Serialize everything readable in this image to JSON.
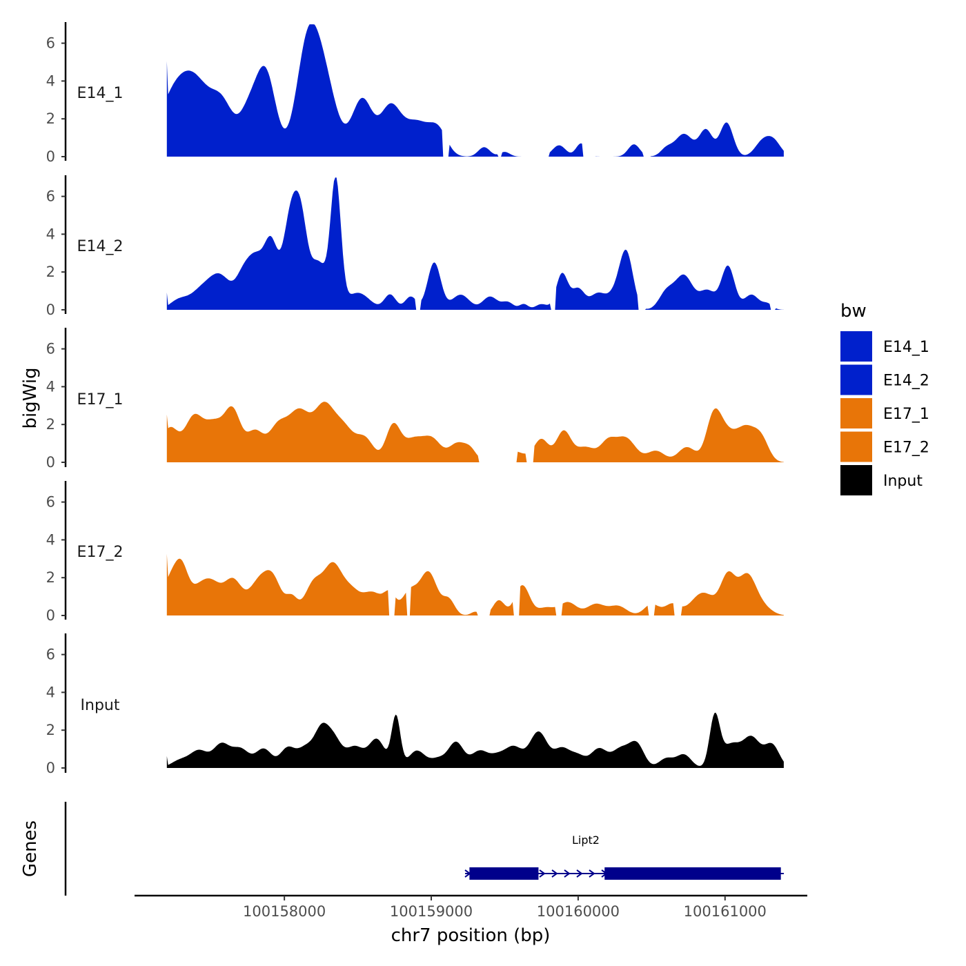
{
  "chart_data": {
    "type": "area",
    "title": "",
    "xlabel": "chr7 position (bp)",
    "ylabel": "bigWig",
    "genes_label": "Genes",
    "x_range": [
      100157200,
      100161400
    ],
    "xlim": [
      100156980,
      100161560
    ],
    "x_ticks": [
      100158000,
      100159000,
      100160000,
      100161000
    ],
    "x_tick_labels": [
      "100158000",
      "100159000",
      "100160000",
      "100161000"
    ],
    "y_range": [
      0,
      7
    ],
    "y_ticks": [
      0,
      2,
      4,
      6
    ],
    "y_tick_labels": [
      "0",
      "2",
      "4",
      "6"
    ],
    "legend": {
      "title": "bw",
      "position": "right",
      "items": [
        {
          "label": "E14_1",
          "color": "#0020cc"
        },
        {
          "label": "E14_2",
          "color": "#0020cc"
        },
        {
          "label": "E17_1",
          "color": "#e87508"
        },
        {
          "label": "E17_2",
          "color": "#e87508"
        },
        {
          "label": "Input",
          "color": "#000000"
        }
      ]
    },
    "series": [
      {
        "name": "E14_1",
        "color": "#0020cc",
        "peaks": [
          [
            100157200,
            0.8,
            1.9
          ],
          [
            100157270,
            120,
            3.6
          ],
          [
            100157420,
            90,
            2.2
          ],
          [
            100157580,
            80,
            2.6
          ],
          [
            100157750,
            60,
            1.8
          ],
          [
            100157870,
            70,
            4.5
          ],
          [
            100158150,
            75,
            4.6
          ],
          [
            100158260,
            90,
            4.2
          ],
          [
            100158530,
            70,
            3.0
          ],
          [
            100158720,
            70,
            2.5
          ],
          [
            100158900,
            90,
            1.8
          ],
          [
            100159050,
            60,
            1.2
          ],
          [
            100159360,
            40,
            0.5
          ],
          [
            100159500,
            35,
            0.25
          ],
          [
            100159870,
            45,
            0.6
          ],
          [
            100160020,
            35,
            0.7
          ],
          [
            100160380,
            40,
            0.65
          ],
          [
            100160600,
            40,
            0.4
          ],
          [
            100160720,
            60,
            1.2
          ],
          [
            100160870,
            45,
            1.4
          ],
          [
            100161010,
            45,
            1.8
          ],
          [
            100161250,
            50,
            0.7
          ],
          [
            100161330,
            50,
            0.8
          ]
        ],
        "gaps": [
          [
            100159080,
            100159120
          ],
          [
            100159450,
            100159480
          ],
          [
            100159700,
            100159800
          ],
          [
            100160030,
            100160120
          ],
          [
            100160440,
            100160490
          ]
        ]
      },
      {
        "name": "E14_2",
        "color": "#0020cc",
        "peaks": [
          [
            100157200,
            0.7,
            0.7
          ],
          [
            100157280,
            60,
            0.5
          ],
          [
            100157420,
            70,
            0.8
          ],
          [
            100157560,
            80,
            1.8
          ],
          [
            100157720,
            50,
            1.5
          ],
          [
            100157810,
            55,
            2.5
          ],
          [
            100157910,
            45,
            3.2
          ],
          [
            100158050,
            55,
            5.3
          ],
          [
            100158120,
            40,
            2.7
          ],
          [
            100158230,
            60,
            2.5
          ],
          [
            100158350,
            35,
            6.6
          ],
          [
            100158500,
            80,
            0.9
          ],
          [
            100158720,
            40,
            0.8
          ],
          [
            100158860,
            40,
            0.7
          ],
          [
            100159020,
            45,
            2.5
          ],
          [
            100159200,
            60,
            0.8
          ],
          [
            100159400,
            50,
            0.7
          ],
          [
            100159520,
            40,
            0.4
          ],
          [
            100159630,
            30,
            0.3
          ],
          [
            100159750,
            40,
            0.3
          ],
          [
            100159890,
            40,
            1.9
          ],
          [
            100160000,
            45,
            1.1
          ],
          [
            100160130,
            50,
            0.8
          ],
          [
            100160260,
            60,
            0.9
          ],
          [
            100160330,
            45,
            2.7
          ],
          [
            100160600,
            50,
            0.9
          ],
          [
            100160720,
            60,
            1.8
          ],
          [
            100160880,
            55,
            1.0
          ],
          [
            100161020,
            45,
            2.3
          ],
          [
            100161180,
            50,
            0.8
          ],
          [
            100161290,
            35,
            0.3
          ]
        ],
        "gaps": [
          [
            100158890,
            100158930
          ],
          [
            100159810,
            100159850
          ],
          [
            100160410,
            100160460
          ],
          [
            100161310,
            100161340
          ]
        ]
      },
      {
        "name": "E17_1",
        "color": "#e87508",
        "peaks": [
          [
            100157200,
            0.6,
            0.8
          ],
          [
            100157220,
            60,
            1.8
          ],
          [
            100157380,
            60,
            2.2
          ],
          [
            100157520,
            70,
            2.0
          ],
          [
            100157650,
            55,
            2.5
          ],
          [
            100157800,
            60,
            1.6
          ],
          [
            100157950,
            60,
            1.6
          ],
          [
            100158100,
            80,
            2.7
          ],
          [
            100158270,
            65,
            2.6
          ],
          [
            100158400,
            70,
            1.8
          ],
          [
            100158550,
            60,
            1.2
          ],
          [
            100158740,
            50,
            1.9
          ],
          [
            100158880,
            70,
            1.2
          ],
          [
            100159010,
            60,
            1.1
          ],
          [
            100159180,
            60,
            1.0
          ],
          [
            100159270,
            40,
            0.5
          ],
          [
            100159460,
            60,
            0.6
          ],
          [
            100159580,
            70,
            0.5
          ],
          [
            100159750,
            50,
            1.2
          ],
          [
            100159900,
            50,
            1.6
          ],
          [
            100160050,
            70,
            0.8
          ],
          [
            100160200,
            50,
            0.9
          ],
          [
            100160320,
            70,
            1.3
          ],
          [
            100160530,
            60,
            0.6
          ],
          [
            100160740,
            60,
            0.8
          ],
          [
            100160920,
            50,
            2.2
          ],
          [
            100161000,
            60,
            1.3
          ],
          [
            100161140,
            70,
            1.8
          ],
          [
            100161250,
            50,
            1.0
          ]
        ],
        "gaps": [
          [
            100159320,
            100159580
          ],
          [
            100159650,
            100159700
          ]
        ]
      },
      {
        "name": "E17_2",
        "color": "#e87508",
        "peaks": [
          [
            100157200,
            0.5,
            1.4
          ],
          [
            100157220,
            55,
            1.8
          ],
          [
            100157300,
            45,
            2.0
          ],
          [
            100157420,
            70,
            1.4
          ],
          [
            100157520,
            60,
            1.2
          ],
          [
            100157650,
            60,
            1.8
          ],
          [
            100157830,
            70,
            1.8
          ],
          [
            100157930,
            55,
            1.5
          ],
          [
            100158050,
            40,
            0.9
          ],
          [
            100158200,
            60,
            1.7
          ],
          [
            100158330,
            60,
            2.5
          ],
          [
            100158450,
            60,
            1.2
          ],
          [
            100158600,
            70,
            1.2
          ],
          [
            100158720,
            40,
            1.0
          ],
          [
            100158850,
            50,
            1.2
          ],
          [
            100158980,
            60,
            2.3
          ],
          [
            100159120,
            40,
            0.8
          ],
          [
            100159300,
            30,
            0.2
          ],
          [
            100159460,
            40,
            0.8
          ],
          [
            100159620,
            50,
            1.6
          ],
          [
            100159780,
            55,
            0.4
          ],
          [
            100159930,
            60,
            0.7
          ],
          [
            100160120,
            60,
            0.6
          ],
          [
            100160270,
            60,
            0.5
          ],
          [
            100160500,
            50,
            0.6
          ],
          [
            100160640,
            50,
            0.6
          ],
          [
            100160850,
            80,
            1.2
          ],
          [
            100161020,
            50,
            2.0
          ],
          [
            100161150,
            60,
            2.1
          ],
          [
            100161260,
            60,
            0.4
          ]
        ],
        "gaps": [
          [
            100158710,
            100158750
          ],
          [
            100158830,
            100158860
          ],
          [
            100159310,
            100159400
          ],
          [
            100159560,
            100159600
          ],
          [
            100159850,
            100159890
          ],
          [
            100160480,
            100160520
          ],
          [
            100160650,
            100160700
          ]
        ]
      },
      {
        "name": "Input",
        "color": "#000000",
        "peaks": [
          [
            100157200,
            0.5,
            0.5
          ],
          [
            100157290,
            60,
            0.4
          ],
          [
            100157420,
            60,
            0.9
          ],
          [
            100157570,
            55,
            1.2
          ],
          [
            100157700,
            60,
            1.0
          ],
          [
            100157860,
            55,
            1.0
          ],
          [
            100158020,
            50,
            1.0
          ],
          [
            100158150,
            60,
            1.1
          ],
          [
            100158250,
            45,
            1.5
          ],
          [
            100158330,
            55,
            1.6
          ],
          [
            100158480,
            60,
            1.1
          ],
          [
            100158630,
            55,
            1.5
          ],
          [
            100158760,
            30,
            2.7
          ],
          [
            100158900,
            55,
            0.9
          ],
          [
            100159050,
            60,
            0.5
          ],
          [
            100159170,
            50,
            1.3
          ],
          [
            100159330,
            60,
            0.9
          ],
          [
            100159450,
            50,
            0.5
          ],
          [
            100159560,
            60,
            1.1
          ],
          [
            100159730,
            60,
            1.9
          ],
          [
            100159890,
            55,
            1.0
          ],
          [
            100160000,
            50,
            0.6
          ],
          [
            100160140,
            55,
            1.0
          ],
          [
            100160290,
            60,
            1.0
          ],
          [
            100160400,
            50,
            1.2
          ],
          [
            100160600,
            50,
            0.5
          ],
          [
            100160720,
            50,
            0.7
          ],
          [
            100160930,
            35,
            2.7
          ],
          [
            100161040,
            60,
            1.2
          ],
          [
            100161180,
            60,
            1.6
          ],
          [
            100161320,
            50,
            1.2
          ]
        ],
        "gaps": []
      }
    ],
    "genes": [
      {
        "name": "Lipt2",
        "start": 100159230,
        "end": 100161400,
        "strand": "+",
        "exons": [
          [
            100159260,
            100159730
          ],
          [
            100160180,
            100161380
          ]
        ]
      }
    ]
  }
}
